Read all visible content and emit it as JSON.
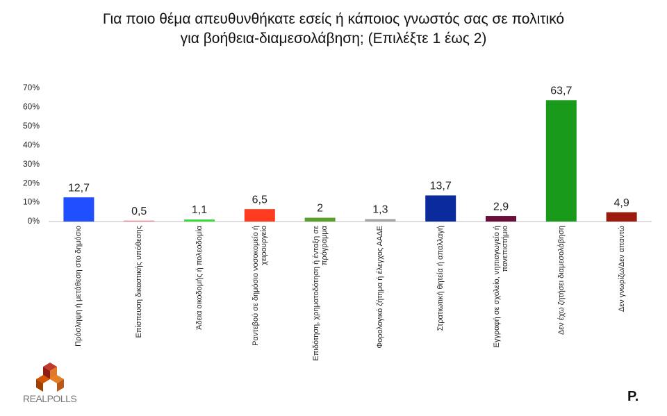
{
  "chart_data": {
    "type": "bar",
    "title": [
      "Για ποιο θέμα απευθυνθήκατε εσείς ή κάποιος γνωστός σας σε πολιτικό",
      "για βοήθεια-διαμεσολάβηση; (Επιλέξτε 1 έως 2)"
    ],
    "categories": [
      "Πρόσληψη ή μετάθεση στο δημόσιο",
      "Επίσπευση δικαστικής υπόθεσης",
      "Άδεια οικοδομής ή πολεοδομία",
      "Ραντεβού σε δημόσιο νοσοκομείο ή χειρουργείο",
      "Επιδότηση, χρηματοδότηση ή ένταξη σε πρόγραμμα",
      "Φορολογικό ζήτημα ή έλεγχος ΑΑΔΕ",
      "Στρατιωτική θητεία ή απαλλαγή",
      "Εγγραφή σε σχολείο, νηπιαγωγείο ή πανεπιστήμιο",
      "Δεν έχω ζητήσει διαμεσολάβηση",
      "Δεν γνωρίζω/Δεν απαντώ"
    ],
    "values": [
      12.7,
      0.5,
      1.1,
      6.5,
      2,
      1.3,
      13.7,
      2.9,
      63.7,
      4.9
    ],
    "value_labels": [
      "12,7",
      "0,5",
      "1,1",
      "6,5",
      "2",
      "1,3",
      "13,7",
      "2,9",
      "63,7",
      "4,9"
    ],
    "colors": [
      "#1f4fff",
      "#e8899a",
      "#3ddc3d",
      "#ff3b1f",
      "#5aa02c",
      "#a6a6a6",
      "#0b2a9c",
      "#6b0f3a",
      "#1a9a1a",
      "#9b1c0e"
    ],
    "ylim": [
      0,
      70
    ],
    "yticks": [
      {
        "value": 0,
        "label": "0%"
      },
      {
        "value": 10,
        "label": "10%"
      },
      {
        "value": 20,
        "label": "20%"
      },
      {
        "value": 30,
        "label": "30%"
      },
      {
        "value": 40,
        "label": "40%"
      },
      {
        "value": 50,
        "label": "50%"
      },
      {
        "value": 60,
        "label": "60%"
      },
      {
        "value": 70,
        "label": "70%"
      }
    ],
    "grid": false
  },
  "source_logo": "REALPOLLS",
  "publisher_logo": "P."
}
